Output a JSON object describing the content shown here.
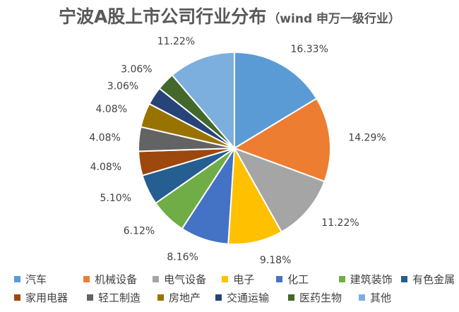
{
  "chart_data": {
    "type": "pie",
    "title": "宁波A股上市公司行业分布",
    "subtitle": "（wind 申万一级行业）",
    "categories": [
      "汽车",
      "机械设备",
      "电气设备",
      "电子",
      "化工",
      "建筑装饰",
      "有色金属",
      "家用电器",
      "轻工制造",
      "房地产",
      "交通运输",
      "医药生物",
      "其他"
    ],
    "values": [
      16.33,
      14.29,
      11.22,
      9.18,
      8.16,
      6.12,
      5.1,
      4.08,
      4.08,
      4.08,
      3.06,
      3.06,
      11.22
    ],
    "value_labels": [
      "16.33%",
      "14.29%",
      "11.22%",
      "9.18%",
      "8.16%",
      "6.12%",
      "5.10%",
      "4.08%",
      "4.08%",
      "4.08%",
      "3.06%",
      "3.06%",
      "11.22%"
    ],
    "colors": [
      "#5B9BD5",
      "#ED7D31",
      "#A5A5A5",
      "#FFC000",
      "#4472C4",
      "#70AD47",
      "#255E91",
      "#9E480E",
      "#636363",
      "#997300",
      "#264478",
      "#43682B",
      "#7CAFDD"
    ],
    "legend_position": "bottom",
    "start_angle": "12 o'clock",
    "direction": "clockwise"
  }
}
